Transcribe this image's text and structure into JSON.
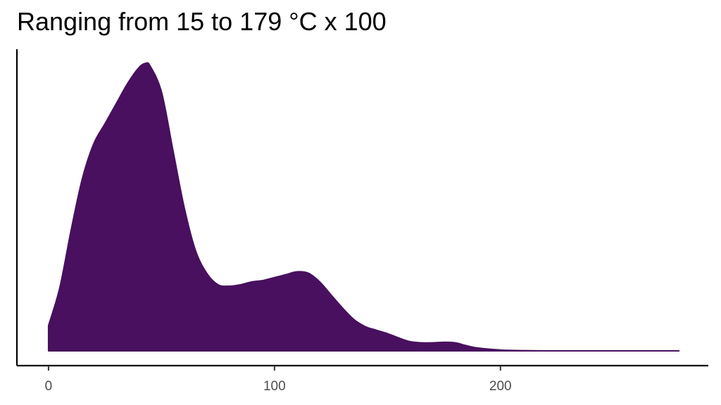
{
  "chart_data": {
    "type": "area",
    "title": "Ranging from 15 to 179 °C x 100",
    "xlabel": "",
    "ylabel": "",
    "xlim": [
      -14,
      292
    ],
    "ylim": [
      0,
      1
    ],
    "x_ticks": [
      0,
      100,
      200
    ],
    "y_ticks": [],
    "grid": false,
    "legend": "none",
    "fill_color": "#48105e",
    "series": [
      {
        "x": [
          0,
          5,
          10,
          15,
          20,
          25,
          30,
          35,
          40,
          43,
          45,
          50,
          55,
          60,
          65,
          70,
          75,
          80,
          85,
          90,
          95,
          100,
          105,
          110,
          115,
          120,
          125,
          130,
          135,
          140,
          145,
          150,
          155,
          160,
          165,
          170,
          175,
          180,
          185,
          190,
          200,
          210,
          220,
          240,
          260,
          279
        ],
        "y": [
          0.088,
          0.22,
          0.42,
          0.6,
          0.72,
          0.79,
          0.86,
          0.93,
          0.985,
          1.0,
          0.99,
          0.9,
          0.7,
          0.5,
          0.35,
          0.27,
          0.23,
          0.225,
          0.23,
          0.24,
          0.245,
          0.255,
          0.265,
          0.275,
          0.27,
          0.24,
          0.195,
          0.15,
          0.11,
          0.085,
          0.072,
          0.06,
          0.045,
          0.032,
          0.028,
          0.028,
          0.03,
          0.028,
          0.018,
          0.01,
          0.003,
          0.001,
          0.0,
          0.0,
          0.0,
          0.0
        ]
      }
    ]
  }
}
